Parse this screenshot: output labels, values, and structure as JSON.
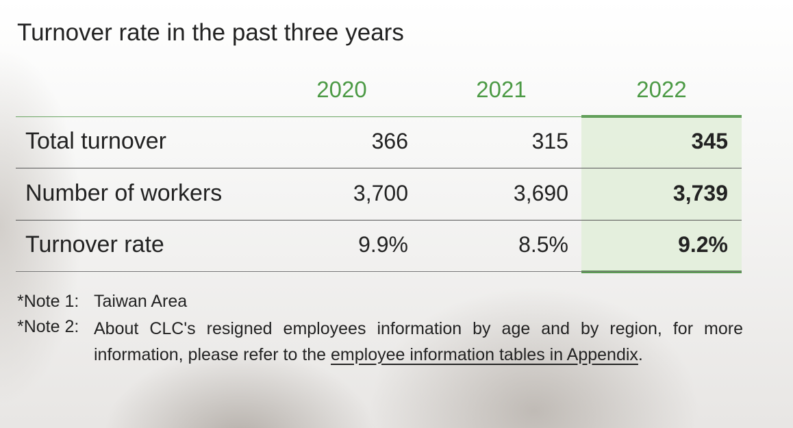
{
  "title": "Turnover rate in the past three years",
  "table": {
    "columns": [
      "2020",
      "2021",
      "2022"
    ],
    "rows": [
      {
        "label": "Total turnover",
        "values": [
          "366",
          "315",
          "345"
        ]
      },
      {
        "label": "Number of workers",
        "values": [
          "3,700",
          "3,690",
          "3,739"
        ]
      },
      {
        "label": "Turnover rate",
        "values": [
          "9.9%",
          "8.5%",
          "9.2%"
        ]
      }
    ]
  },
  "notes": [
    {
      "label": "*Note 1:",
      "text": "Taiwan Area"
    },
    {
      "label": "*Note 2:",
      "text": "About CLC's resigned employees information by age and by region, for more information, please refer to the ",
      "link": "employee information tables in Appendix",
      "end": "."
    }
  ]
}
